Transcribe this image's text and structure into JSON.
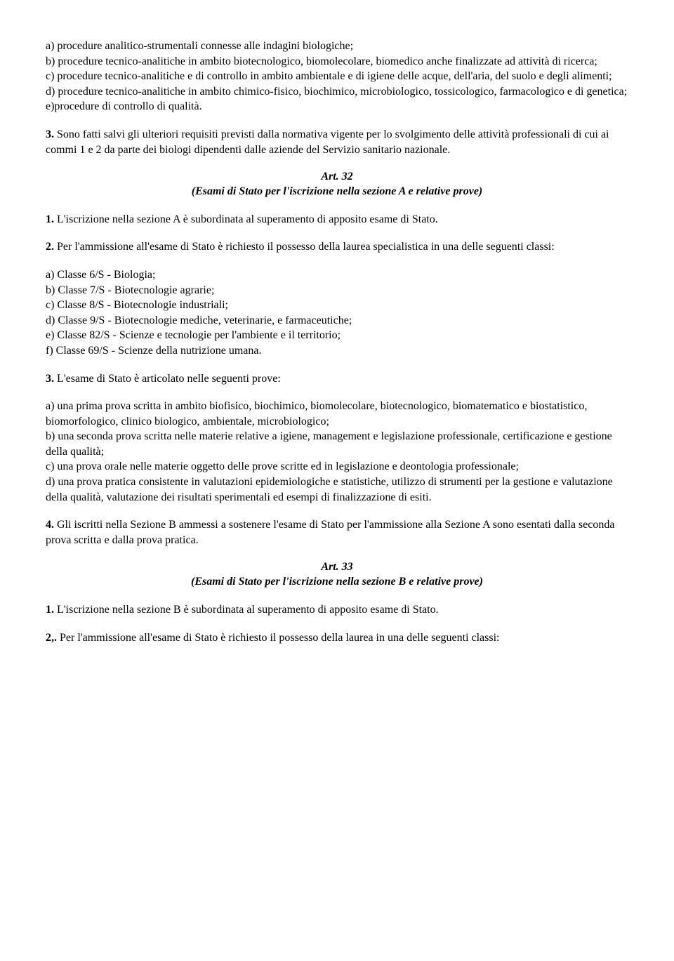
{
  "para1": {
    "a": "a) procedure analitico-strumentali connesse alle indagini biologiche;",
    "b": "b) procedure tecnico-analitiche in ambito biotecnologico, biomolecolare, biomedico anche finalizzate ad attività di ricerca;",
    "c": "c) procedure tecnico-analitiche e di controllo in ambito ambientale e di igiene delle acque, dell'aria, del suolo e degli alimenti;",
    "d": "d) procedure tecnico-analitiche in ambito chimico-fisico, biochimico, microbiologico, tossicologico, farmacologico e di genetica;",
    "e": "e)procedure di controllo di qualità."
  },
  "para2": {
    "num": "3.",
    "text": " Sono fatti salvi gli ulteriori requisiti previsti dalla normativa vigente per lo svolgimento delle attività professionali di cui ai commi 1 e 2 da parte dei biologi dipendenti dalle aziende del Servizio sanitario nazionale."
  },
  "art32": {
    "num": "Art. 32",
    "title": "(Esami di Stato per l'iscrizione nella sezione A e relative prove)"
  },
  "para3": {
    "num": "1.",
    "text": " L'iscrizione nella sezione A è subordinata al superamento di apposito esame di Stato."
  },
  "para4": {
    "num": "2.",
    "text": " Per l'ammissione all'esame di Stato è richiesto il possesso della laurea specialistica in una delle seguenti classi:"
  },
  "para5": {
    "a": "a) Classe 6/S - Biologia;",
    "b": "b) Classe 7/S - Biotecnologie agrarie;",
    "c": "c) Classe 8/S - Biotecnologie industriali;",
    "d": "d) Classe 9/S - Biotecnologie mediche, veterinarie, e farmaceutiche;",
    "e": "e) Classe 82/S - Scienze e tecnologie per l'ambiente e il territorio;",
    "f": "f) Classe 69/S - Scienze della nutrizione umana."
  },
  "para6": {
    "num": "3.",
    "text": " L'esame di Stato è articolato nelle seguenti prove:"
  },
  "para7": {
    "a": "a) una prima prova scritta in ambito biofisico, biochimico, biomolecolare, biotecnologico, biomatematico e biostatistico, biomorfologico, clinico biologico, ambientale, microbiologico;",
    "b": "b) una seconda prova scritta nelle materie relative a igiene, management e legislazione professionale, certificazione e gestione della qualità;",
    "c": "c) una prova orale nelle materie oggetto delle prove scritte ed in legislazione e deontologia professionale;",
    "d": "d) una prova pratica consistente in valutazioni epidemiologiche e statistiche, utilizzo di strumenti per la gestione e valutazione della qualità, valutazione dei risultati sperimentali ed esempi di finalizzazione di esiti."
  },
  "para8": {
    "num": "4.",
    "text": " Gli iscritti nella Sezione B ammessi a sostenere l'esame di Stato per l'ammissione alla Sezione A sono esentati dalla seconda prova scritta e dalla prova pratica."
  },
  "art33": {
    "num": "Art. 33",
    "title": "(Esami di Stato per l'iscrizione nella sezione B e relative prove)"
  },
  "para9": {
    "num": "1.",
    "text": " L'iscrizione nella sezione B è subordinata al superamento di apposito esame di Stato."
  },
  "para10": {
    "num": "2,.",
    "text": " Per l'ammissione all'esame di Stato è richiesto il possesso della laurea in una delle seguenti classi:"
  }
}
